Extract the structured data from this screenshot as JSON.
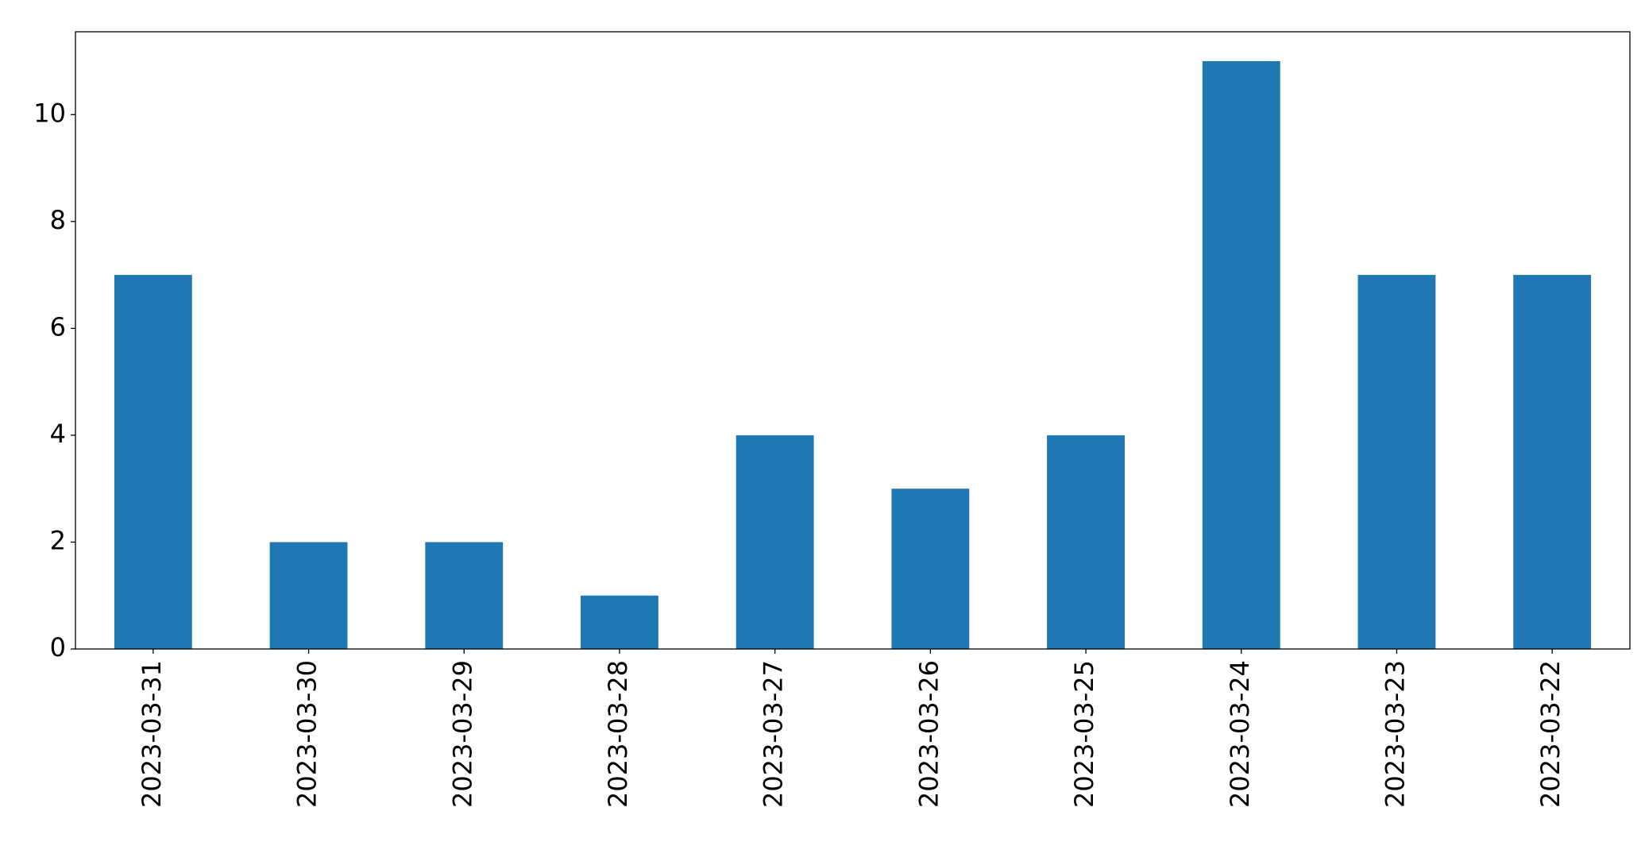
{
  "chart_data": {
    "type": "bar",
    "categories": [
      "2023-03-31",
      "2023-03-30",
      "2023-03-29",
      "2023-03-28",
      "2023-03-27",
      "2023-03-26",
      "2023-03-25",
      "2023-03-24",
      "2023-03-23",
      "2023-03-22"
    ],
    "values": [
      7,
      2,
      2,
      1,
      4,
      3,
      4,
      11,
      7,
      7
    ],
    "color": "#1f77b4",
    "ylim": [
      0,
      11.55
    ],
    "yticks": [
      0,
      2,
      4,
      6,
      8,
      10
    ],
    "grid": false
  }
}
